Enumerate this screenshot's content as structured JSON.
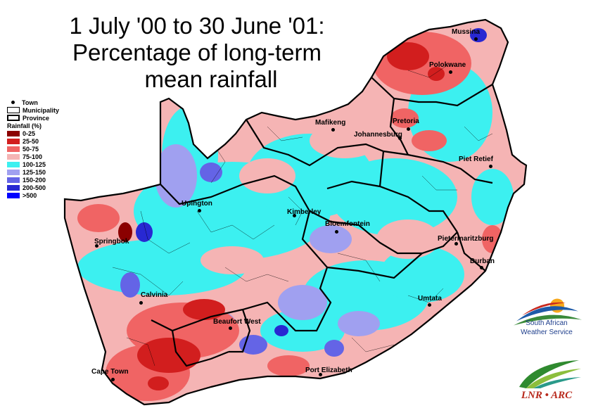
{
  "title": {
    "line1": "1 July '00 to 30 June '01:",
    "line2": "Percentage of long-term",
    "line3": "mean rainfall"
  },
  "legend": {
    "town": "Town",
    "municipality": "Municipality",
    "province": "Province",
    "heading": "Rainfall (%)",
    "classes": [
      {
        "label": "0-25",
        "color": "#8b0000"
      },
      {
        "label": "25-50",
        "color": "#d21e1e"
      },
      {
        "label": "50-75",
        "color": "#f06464"
      },
      {
        "label": "75-100",
        "color": "#f5b4b4"
      },
      {
        "label": "100-125",
        "color": "#3cf0f0"
      },
      {
        "label": "125-150",
        "color": "#a0a0f0"
      },
      {
        "label": "150-200",
        "color": "#6464e6"
      },
      {
        "label": "200-500",
        "color": "#2828d2"
      },
      {
        "label": ">500",
        "color": "#0000ff"
      }
    ]
  },
  "towns": [
    {
      "name": "Mussina"
    },
    {
      "name": "Polokwane"
    },
    {
      "name": "Pretoria"
    },
    {
      "name": "Johannesburg"
    },
    {
      "name": "Mafikeng"
    },
    {
      "name": "Piet Retief"
    },
    {
      "name": "Upington"
    },
    {
      "name": "Kimberley"
    },
    {
      "name": "Bloemfontein"
    },
    {
      "name": "Springbok"
    },
    {
      "name": "Pietermaritzburg"
    },
    {
      "name": "Durban"
    },
    {
      "name": "Calvinia"
    },
    {
      "name": "Umtata"
    },
    {
      "name": "Beaufort West"
    },
    {
      "name": "Cape Town"
    },
    {
      "name": "Port Elizabeth"
    }
  ],
  "logos": {
    "saws_line1": "South African",
    "saws_line2": "Weather Service",
    "lnr": "LNR • ARC"
  }
}
